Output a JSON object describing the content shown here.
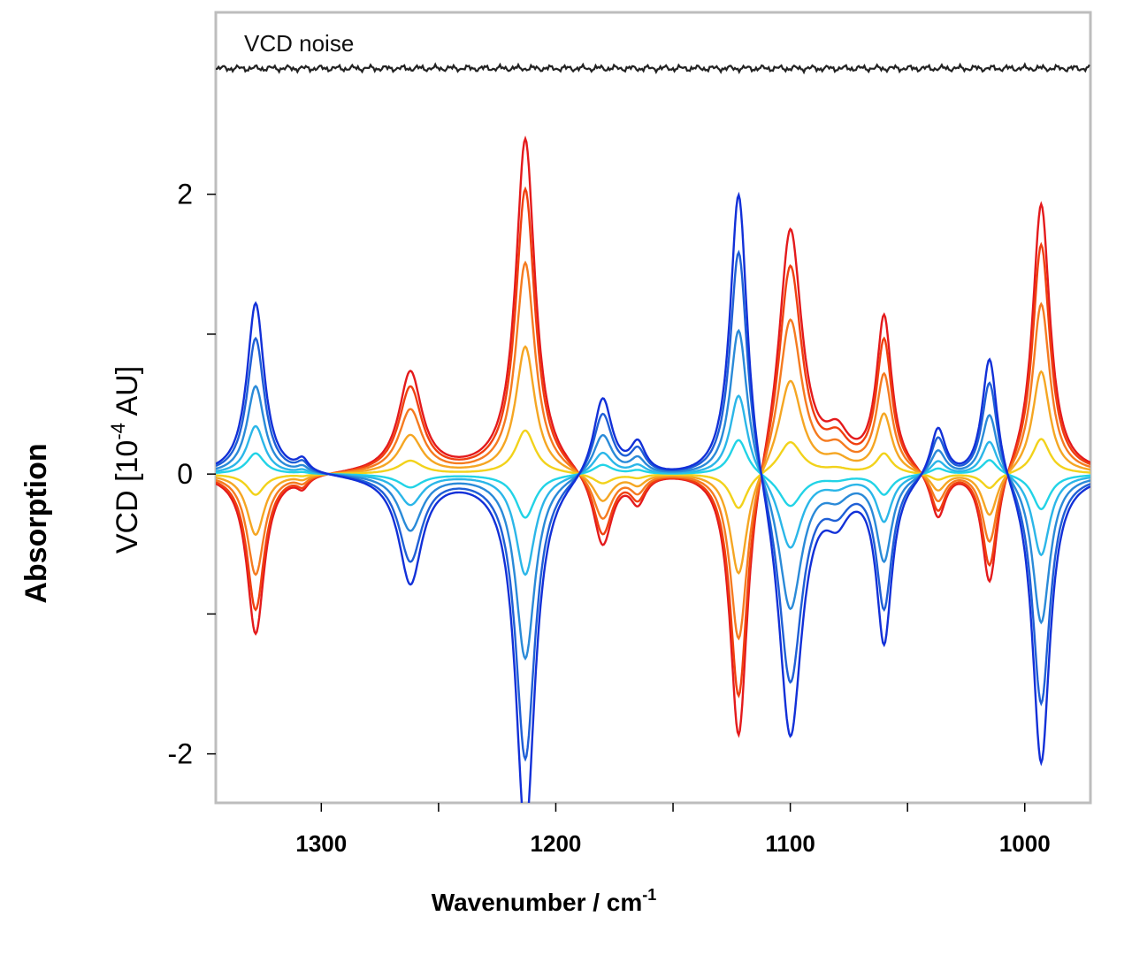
{
  "chart_data": {
    "type": "line",
    "title": "",
    "xlabel": "Wavenumber / cm",
    "xlabel_sup": "-1",
    "ylabel": "VCD [10",
    "ylabel_sup": "-4",
    "ylabel_tail": " AU]",
    "outer_label": "Absorption",
    "noise_label": "VCD noise",
    "x_reversed": true,
    "xlim": [
      1345,
      972
    ],
    "ylim": [
      -2.35,
      3.3
    ],
    "x_ticks": [
      1300,
      1250,
      1200,
      1150,
      1100,
      1050,
      1000
    ],
    "x_tick_labels": [
      "1300",
      "",
      "1200",
      "",
      "1100",
      "",
      "1000"
    ],
    "y_ticks": [
      2,
      1,
      0,
      -1,
      -2
    ],
    "y_tick_labels": [
      "2",
      "",
      "0",
      "",
      "-2"
    ],
    "grid": false,
    "noise_offset": 2.9,
    "noise_color": "#222222",
    "bands": [
      {
        "x": 1328,
        "base": -1.15,
        "w": 4.5
      },
      {
        "x": 1308,
        "base": -0.08,
        "w": 3
      },
      {
        "x": 1262,
        "base": 0.72,
        "w": 6
      },
      {
        "x": 1213,
        "base": 2.4,
        "w": 5
      },
      {
        "x": 1180,
        "base": -0.55,
        "w": 5
      },
      {
        "x": 1165,
        "base": -0.2,
        "w": 4
      },
      {
        "x": 1122,
        "base": -2.0,
        "w": 4.5
      },
      {
        "x": 1100,
        "base": 1.8,
        "w": 6
      },
      {
        "x": 1080,
        "base": 0.22,
        "w": 6
      },
      {
        "x": 1060,
        "base": 1.1,
        "w": 4
      },
      {
        "x": 1037,
        "base": -0.35,
        "w": 4
      },
      {
        "x": 1015,
        "base": -0.85,
        "w": 4
      },
      {
        "x": 993,
        "base": 1.95,
        "w": 4.5
      }
    ],
    "series": [
      {
        "color": "#e41a1c",
        "scale": 1.0
      },
      {
        "color": "#f04010",
        "scale": 0.85
      },
      {
        "color": "#f57b20",
        "scale": 0.63
      },
      {
        "color": "#f5a623",
        "scale": 0.38
      },
      {
        "color": "#f2d21b",
        "scale": 0.13
      },
      {
        "color": "#22d3e6",
        "scale": -0.13
      },
      {
        "color": "#2bb6e8",
        "scale": -0.3
      },
      {
        "color": "#2a8ad8",
        "scale": -0.55
      },
      {
        "color": "#1f5fd6",
        "scale": -0.85
      },
      {
        "color": "#1230d8",
        "scale": -1.07
      }
    ]
  }
}
